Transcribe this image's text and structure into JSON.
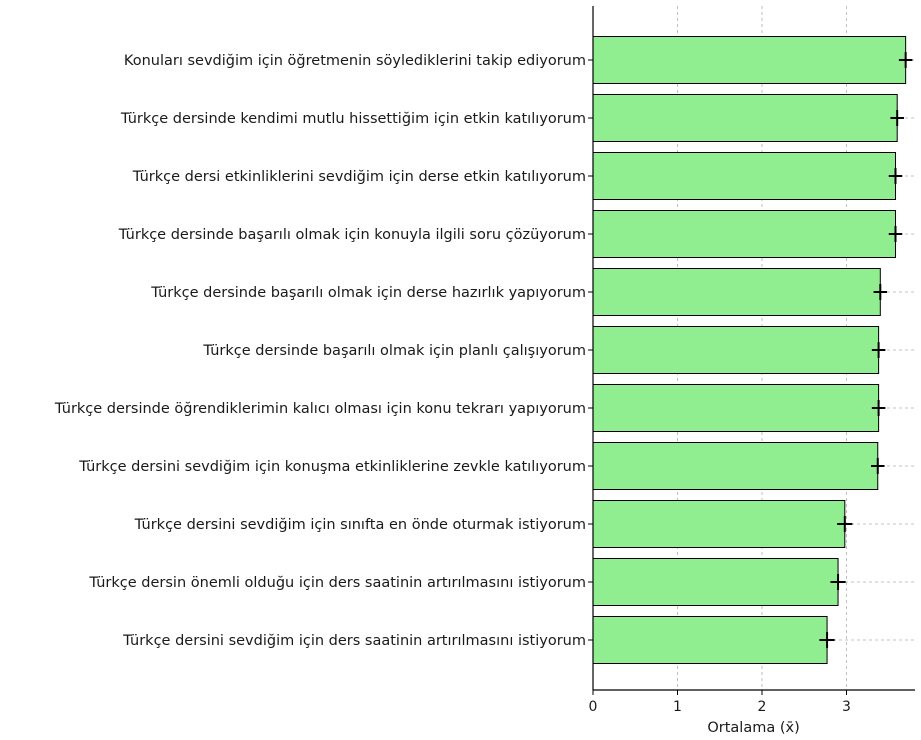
{
  "chart_data": {
    "type": "bar",
    "orientation": "horizontal",
    "xlabel": "Ortalama (x̄)",
    "ylabel": "",
    "xlim": [
      0,
      3.8
    ],
    "xticks": [
      "0",
      "1",
      "2",
      "3"
    ],
    "grid": true,
    "bar_color": "#90ee90",
    "categories": [
      "Konuları sevdiğim için öğretmenin söylediklerini takip ediyorum",
      "Türkçe dersinde kendimi mutlu hissettiğim için etkin katılıyorum",
      "Türkçe dersi etkinliklerini sevdiğim için derse etkin katılıyorum",
      "Türkçe dersinde başarılı olmak için konuyla ilgili soru çözüyorum",
      "Türkçe dersinde başarılı olmak için derse hazırlık yapıyorum",
      "Türkçe dersinde başarılı olmak için planlı çalışıyorum",
      "Türkçe dersinde öğrendiklerimin kalıcı olması için konu tekrarı yapıyorum",
      "Türkçe dersini sevdiğim için konuşma etkinliklerine zevkle katılıyorum",
      "Türkçe dersini sevdiğim için sınıfta en önde oturmak istiyorum",
      "Türkçe dersin önemli olduğu için ders saatinin artırılmasını istiyorum",
      "Türkçe dersini sevdiğim için ders saatinin artırılmasını istiyorum"
    ],
    "values": [
      3.7,
      3.6,
      3.58,
      3.58,
      3.4,
      3.38,
      3.38,
      3.37,
      2.98,
      2.9,
      2.77
    ],
    "errors": [
      0.08,
      0.08,
      0.08,
      0.08,
      0.08,
      0.08,
      0.08,
      0.08,
      0.09,
      0.09,
      0.09
    ]
  }
}
